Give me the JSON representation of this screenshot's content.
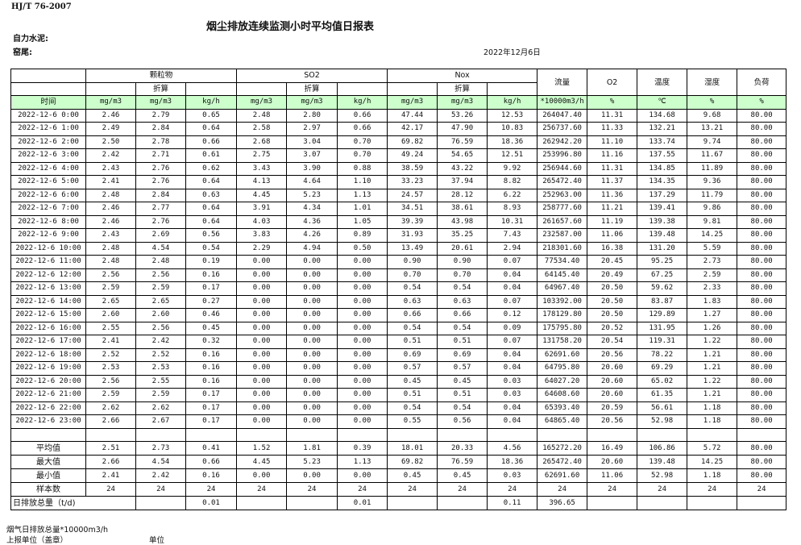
{
  "header": {
    "standard": "HJ/T  76-2007",
    "title": "烟尘排放连续监测小时平均值日报表",
    "company": "自力水泥:",
    "kiln": "窑尾:",
    "date": "2022年12月6日"
  },
  "columns": {
    "groups": [
      "颗粒物",
      "SO2",
      "Nox"
    ],
    "converted": "折算",
    "flow": "流量",
    "o2": "O2",
    "temperature": "温度",
    "humidity": "湿度",
    "load": "负荷",
    "time": "时间",
    "units": [
      "mg/m3",
      "mg/m3",
      "kg/h",
      "mg/m3",
      "mg/m3",
      "kg/h",
      "mg/m3",
      "mg/m3",
      "kg/h",
      "*10000m3/h",
      "%",
      "℃",
      "%",
      "%"
    ]
  },
  "rows": [
    [
      "2022-12-6 0:00",
      "2.46",
      "2.79",
      "0.65",
      "2.48",
      "2.80",
      "0.66",
      "47.44",
      "53.26",
      "12.53",
      "264047.40",
      "11.31",
      "134.68",
      "9.68",
      "80.00"
    ],
    [
      "2022-12-6 1:00",
      "2.49",
      "2.84",
      "0.64",
      "2.58",
      "2.97",
      "0.66",
      "42.17",
      "47.90",
      "10.83",
      "256737.60",
      "11.33",
      "132.21",
      "13.21",
      "80.00"
    ],
    [
      "2022-12-6 2:00",
      "2.50",
      "2.78",
      "0.66",
      "2.68",
      "3.04",
      "0.70",
      "69.82",
      "76.59",
      "18.36",
      "262942.20",
      "11.10",
      "133.74",
      "9.74",
      "80.00"
    ],
    [
      "2022-12-6 3:00",
      "2.42",
      "2.71",
      "0.61",
      "2.75",
      "3.07",
      "0.70",
      "49.24",
      "54.65",
      "12.51",
      "253996.80",
      "11.16",
      "137.55",
      "11.67",
      "80.00"
    ],
    [
      "2022-12-6 4:00",
      "2.43",
      "2.76",
      "0.62",
      "3.43",
      "3.90",
      "0.88",
      "38.59",
      "43.22",
      "9.92",
      "256944.60",
      "11.31",
      "134.85",
      "11.89",
      "80.00"
    ],
    [
      "2022-12-6 5:00",
      "2.41",
      "2.76",
      "0.64",
      "4.13",
      "4.64",
      "1.10",
      "33.23",
      "37.94",
      "8.82",
      "265472.40",
      "11.37",
      "134.35",
      "9.36",
      "80.00"
    ],
    [
      "2022-12-6 6:00",
      "2.48",
      "2.84",
      "0.63",
      "4.45",
      "5.23",
      "1.13",
      "24.57",
      "28.12",
      "6.22",
      "252963.00",
      "11.36",
      "137.29",
      "11.79",
      "80.00"
    ],
    [
      "2022-12-6 7:00",
      "2.46",
      "2.77",
      "0.64",
      "3.91",
      "4.34",
      "1.01",
      "34.51",
      "38.61",
      "8.93",
      "258777.60",
      "11.21",
      "139.41",
      "9.86",
      "80.00"
    ],
    [
      "2022-12-6 8:00",
      "2.46",
      "2.76",
      "0.64",
      "4.03",
      "4.36",
      "1.05",
      "39.39",
      "43.98",
      "10.31",
      "261657.60",
      "11.19",
      "139.38",
      "9.81",
      "80.00"
    ],
    [
      "2022-12-6 9:00",
      "2.43",
      "2.69",
      "0.56",
      "3.83",
      "4.26",
      "0.89",
      "31.93",
      "35.25",
      "7.43",
      "232587.00",
      "11.06",
      "139.48",
      "14.25",
      "80.00"
    ],
    [
      "2022-12-6 10:00",
      "2.48",
      "4.54",
      "0.54",
      "2.29",
      "4.94",
      "0.50",
      "13.49",
      "20.61",
      "2.94",
      "218301.60",
      "16.38",
      "131.20",
      "5.59",
      "80.00"
    ],
    [
      "2022-12-6 11:00",
      "2.48",
      "2.48",
      "0.19",
      "0.00",
      "0.00",
      "0.00",
      "0.90",
      "0.90",
      "0.07",
      "77534.40",
      "20.45",
      "95.25",
      "2.73",
      "80.00"
    ],
    [
      "2022-12-6 12:00",
      "2.56",
      "2.56",
      "0.16",
      "0.00",
      "0.00",
      "0.00",
      "0.70",
      "0.70",
      "0.04",
      "64145.40",
      "20.49",
      "67.25",
      "2.59",
      "80.00"
    ],
    [
      "2022-12-6 13:00",
      "2.59",
      "2.59",
      "0.17",
      "0.00",
      "0.00",
      "0.00",
      "0.54",
      "0.54",
      "0.04",
      "64967.40",
      "20.50",
      "59.62",
      "2.33",
      "80.00"
    ],
    [
      "2022-12-6 14:00",
      "2.65",
      "2.65",
      "0.27",
      "0.00",
      "0.00",
      "0.00",
      "0.63",
      "0.63",
      "0.07",
      "103392.00",
      "20.50",
      "83.87",
      "1.83",
      "80.00"
    ],
    [
      "2022-12-6 15:00",
      "2.60",
      "2.60",
      "0.46",
      "0.00",
      "0.00",
      "0.00",
      "0.66",
      "0.66",
      "0.12",
      "178129.80",
      "20.50",
      "129.89",
      "1.27",
      "80.00"
    ],
    [
      "2022-12-6 16:00",
      "2.55",
      "2.56",
      "0.45",
      "0.00",
      "0.00",
      "0.00",
      "0.54",
      "0.54",
      "0.09",
      "175795.80",
      "20.52",
      "131.95",
      "1.26",
      "80.00"
    ],
    [
      "2022-12-6 17:00",
      "2.41",
      "2.42",
      "0.32",
      "0.00",
      "0.00",
      "0.00",
      "0.51",
      "0.51",
      "0.07",
      "131758.20",
      "20.54",
      "119.31",
      "1.22",
      "80.00"
    ],
    [
      "2022-12-6 18:00",
      "2.52",
      "2.52",
      "0.16",
      "0.00",
      "0.00",
      "0.00",
      "0.69",
      "0.69",
      "0.04",
      "62691.60",
      "20.56",
      "78.22",
      "1.21",
      "80.00"
    ],
    [
      "2022-12-6 19:00",
      "2.53",
      "2.53",
      "0.16",
      "0.00",
      "0.00",
      "0.00",
      "0.57",
      "0.57",
      "0.04",
      "64795.80",
      "20.60",
      "69.29",
      "1.21",
      "80.00"
    ],
    [
      "2022-12-6 20:00",
      "2.56",
      "2.55",
      "0.16",
      "0.00",
      "0.00",
      "0.00",
      "0.45",
      "0.45",
      "0.03",
      "64027.20",
      "20.60",
      "65.02",
      "1.22",
      "80.00"
    ],
    [
      "2022-12-6 21:00",
      "2.59",
      "2.59",
      "0.17",
      "0.00",
      "0.00",
      "0.00",
      "0.51",
      "0.51",
      "0.03",
      "64608.60",
      "20.60",
      "61.35",
      "1.21",
      "80.00"
    ],
    [
      "2022-12-6 22:00",
      "2.62",
      "2.62",
      "0.17",
      "0.00",
      "0.00",
      "0.00",
      "0.54",
      "0.54",
      "0.04",
      "65393.40",
      "20.59",
      "56.61",
      "1.18",
      "80.00"
    ],
    [
      "2022-12-6 23:00",
      "2.66",
      "2.67",
      "0.17",
      "0.00",
      "0.00",
      "0.00",
      "0.55",
      "0.56",
      "0.04",
      "64865.40",
      "20.56",
      "52.98",
      "1.18",
      "80.00"
    ]
  ],
  "summary": [
    [
      "平均值",
      "2.51",
      "2.73",
      "0.41",
      "1.52",
      "1.81",
      "0.39",
      "18.01",
      "20.33",
      "4.56",
      "165272.20",
      "16.49",
      "106.86",
      "5.72",
      "80.00"
    ],
    [
      "最大值",
      "2.66",
      "4.54",
      "0.66",
      "4.45",
      "5.23",
      "1.13",
      "69.82",
      "76.59",
      "18.36",
      "265472.40",
      "20.60",
      "139.48",
      "14.25",
      "80.00"
    ],
    [
      "最小值",
      "2.41",
      "2.42",
      "0.16",
      "0.00",
      "0.00",
      "0.00",
      "0.45",
      "0.45",
      "0.03",
      "62691.60",
      "11.06",
      "52.98",
      "1.18",
      "80.00"
    ],
    [
      "样本数",
      "24",
      "24",
      "24",
      "24",
      "24",
      "24",
      "24",
      "24",
      "24",
      "24",
      "24",
      "24",
      "24",
      "24"
    ]
  ],
  "daily_total": {
    "label": "日排放总量（t/d)",
    "values": [
      "",
      "0.01",
      "",
      "",
      "0.01",
      "",
      "",
      "0.11",
      "396.65",
      "",
      "",
      "",
      ""
    ]
  },
  "footer": {
    "flue_gas_total": "烟气日排放总量*10000m3/h",
    "reporting_unit": "上报单位（盖章）",
    "unit": "单位"
  }
}
